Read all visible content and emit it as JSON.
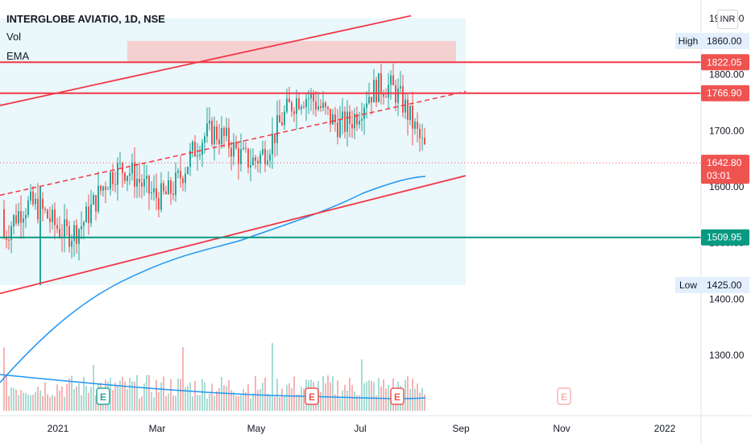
{
  "header": {
    "symbol_line": "INTERGLOBE AVIATIO, 1D, NSE",
    "vol_label": "Vol",
    "ema_label": "EMA",
    "currency": "INR"
  },
  "chart_data": {
    "type": "candlestick",
    "symbol": "INTERGLOBE AVIATIO",
    "interval": "1D",
    "exchange": "NSE",
    "currency": "INR",
    "y_ticks": [
      "1900.00",
      "1800.00",
      "1700.00",
      "1600.00",
      "1500.00",
      "1400.00",
      "1300.00"
    ],
    "x_ticks": [
      "2021",
      "Mar",
      "May",
      "Jul",
      "Sep",
      "Nov",
      "2022"
    ],
    "ylim": [
      1250,
      1915
    ],
    "price_labels": [
      {
        "id": "high",
        "prefix": "High",
        "value": "1860.00",
        "style": "plain"
      },
      {
        "id": "r1",
        "prefix": "",
        "value": "1822.05",
        "style": "red"
      },
      {
        "id": "r2",
        "prefix": "",
        "value": "1766.90",
        "style": "red"
      },
      {
        "id": "last",
        "prefix": "",
        "value": "1642.80",
        "extra": "03:01",
        "style": "red"
      },
      {
        "id": "s1",
        "prefix": "",
        "value": "1509.95",
        "style": "green"
      },
      {
        "id": "low",
        "prefix": "Low",
        "value": "1425.00",
        "style": "plain"
      }
    ],
    "horizontal_levels": [
      {
        "value": 1822.05,
        "color": "#f23645"
      },
      {
        "value": 1766.9,
        "color": "#f23645"
      },
      {
        "value": 1509.95,
        "color": "#089981"
      }
    ],
    "high": 1860.0,
    "low": 1425.0,
    "last": 1642.8,
    "countdown": "03:01",
    "earnings_markers": [
      "E",
      "E",
      "E",
      "E"
    ],
    "colors": {
      "up": "#26a69a",
      "down": "#ef5350",
      "ema": "#2196f3",
      "trend": "#f23645",
      "support": "#089981"
    }
  }
}
